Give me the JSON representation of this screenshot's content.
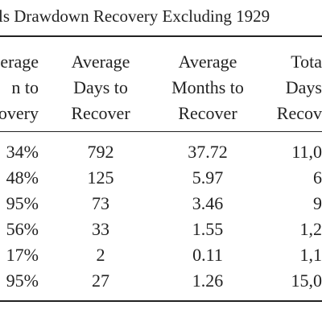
{
  "title": "ls Drawdown Recovery Excluding 1929",
  "table": {
    "header": [
      [
        "erage",
        "n to",
        "overy"
      ],
      [
        "Average",
        "Days to",
        "Recover"
      ],
      [
        "Average",
        "Months to",
        "Recover"
      ],
      [
        "Tota",
        "Days",
        "Recov"
      ]
    ],
    "rows": [
      [
        "34%",
        "792",
        "37.72",
        "11,0"
      ],
      [
        "48%",
        "125",
        "5.97",
        "6"
      ],
      [
        "95%",
        "73",
        "3.46",
        "9"
      ],
      [
        "56%",
        "33",
        "1.55",
        "1,2"
      ],
      [
        "17%",
        "2",
        "0.11",
        "1,1"
      ],
      [
        "95%",
        "27",
        "1.26",
        "15,0"
      ]
    ]
  }
}
